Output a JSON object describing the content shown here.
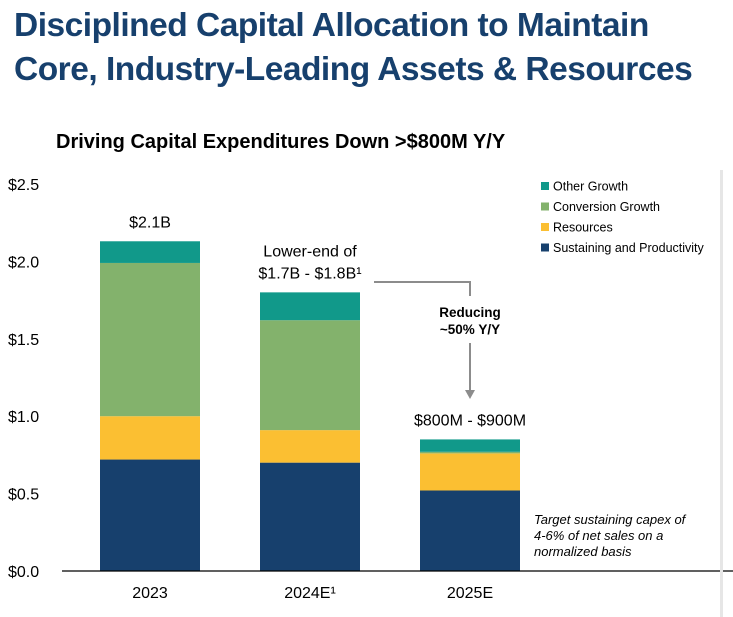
{
  "page": {
    "title_line1": "Disciplined Capital Allocation to Maintain",
    "title_line2": "Core, Industry-Leading Assets & Resources"
  },
  "chart_data": {
    "type": "bar",
    "stacked": true,
    "title": "Driving Capital Expenditures Down >$800M Y/Y",
    "categories": [
      "2023",
      "2024E¹",
      "2025E"
    ],
    "series": [
      {
        "name": "Sustaining and Productivity",
        "color": "#17406d",
        "values": [
          0.72,
          0.7,
          0.52
        ]
      },
      {
        "name": "Resources",
        "color": "#fbbf32",
        "values": [
          0.28,
          0.21,
          0.24
        ]
      },
      {
        "name": "Conversion Growth",
        "color": "#83b26c",
        "values": [
          0.99,
          0.71,
          0.01
        ]
      },
      {
        "name": "Other Growth",
        "color": "#11998a",
        "values": [
          0.14,
          0.18,
          0.08
        ]
      }
    ],
    "bar_total_labels": [
      "$2.1B",
      "Lower-end of\n$1.7B - $1.8B¹",
      "$800M - $900M"
    ],
    "yticks": [
      0.0,
      0.5,
      1.0,
      1.5,
      2.0,
      2.5
    ],
    "ytick_labels": [
      "$0.0",
      "$0.5",
      "$1.0",
      "$1.5",
      "$2.0",
      "$2.5"
    ],
    "ylim": [
      0,
      2.5
    ],
    "legend_position": "top-right",
    "grid": false,
    "annotations": {
      "reduction_text": [
        "Reducing",
        "~50% Y/Y"
      ],
      "footnote_text": [
        "Target sustaining capex of",
        "4-6% of net sales on a",
        "normalized basis"
      ]
    }
  }
}
